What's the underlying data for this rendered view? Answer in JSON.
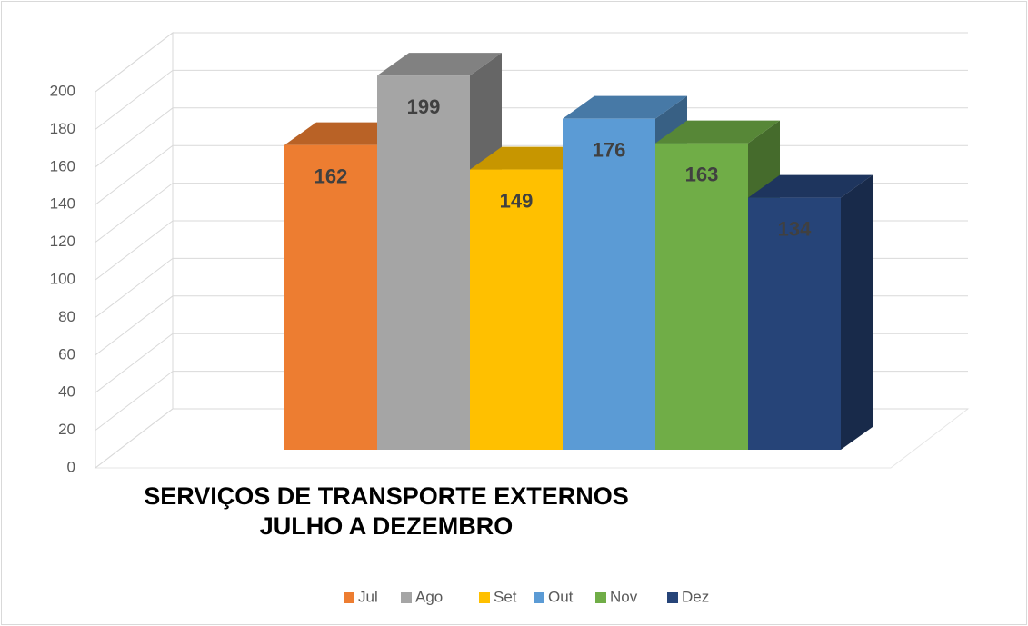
{
  "chart_data": {
    "type": "bar3d",
    "title": [
      "SERVIÇOS DE TRANSPORTE EXTERNOS",
      "JULHO A DEZEMBRO"
    ],
    "categories": [
      "Jul",
      "Ago",
      "Set",
      "Out",
      "Nov",
      "Dez"
    ],
    "values": [
      162,
      199,
      149,
      176,
      163,
      134
    ],
    "colors": [
      "#ed7d31",
      "#a5a5a5",
      "#ffc000",
      "#5b9bd5",
      "#70ad47",
      "#264478"
    ],
    "ylim": [
      0,
      200
    ],
    "yticks": [
      0,
      20,
      40,
      60,
      80,
      100,
      120,
      140,
      160,
      180,
      200
    ],
    "grid": true,
    "legend": "bottom"
  }
}
